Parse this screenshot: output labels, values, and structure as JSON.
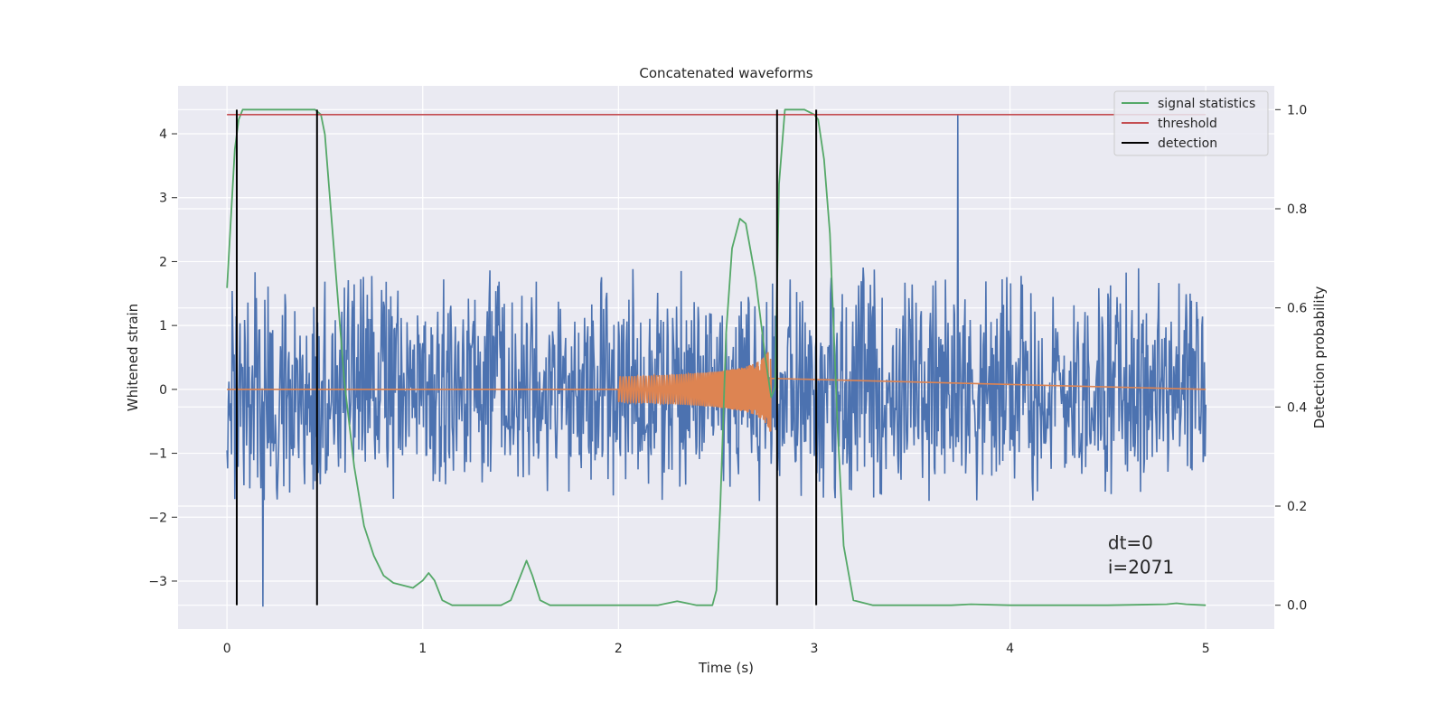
{
  "chart_data": {
    "type": "line",
    "title": "Concatenated waveforms",
    "xlabel": "Time (s)",
    "ylabel": "Whitened strain",
    "y2label": "Detection probability",
    "xlim": [
      -0.25,
      5.35
    ],
    "ylim": [
      -3.75,
      4.75
    ],
    "y2lim": [
      -0.048,
      1.048
    ],
    "x_ticks": [
      0,
      1,
      2,
      3,
      4,
      5
    ],
    "y_ticks": [
      -3,
      -2,
      -1,
      0,
      1,
      2,
      3,
      4
    ],
    "y2_ticks": [
      0.0,
      0.2,
      0.4,
      0.6,
      0.8,
      1.0
    ],
    "grid": true,
    "legend_position": "top-right",
    "colors": {
      "strain": "#4c72b0",
      "injection": "#dd8452",
      "signal_statistics": "#55a868",
      "threshold": "#c44e52",
      "detection": "#000000",
      "background": "#eaeaf2"
    },
    "series": [
      {
        "name": "signal statistics",
        "axis": "right",
        "x": [
          0,
          0.02,
          0.04,
          0.06,
          0.08,
          0.1,
          0.15,
          0.2,
          0.3,
          0.4,
          0.45,
          0.48,
          0.5,
          0.52,
          0.55,
          0.6,
          0.65,
          0.7,
          0.75,
          0.8,
          0.85,
          0.9,
          0.95,
          1.0,
          1.03,
          1.06,
          1.1,
          1.15,
          1.2,
          1.3,
          1.4,
          1.45,
          1.5,
          1.53,
          1.56,
          1.6,
          1.65,
          1.7,
          1.8,
          2.0,
          2.2,
          2.3,
          2.4,
          2.48,
          2.5,
          2.52,
          2.55,
          2.58,
          2.62,
          2.65,
          2.7,
          2.75,
          2.78,
          2.8,
          2.82,
          2.85,
          2.9,
          2.95,
          3.0,
          3.02,
          3.05,
          3.08,
          3.1,
          3.12,
          3.15,
          3.2,
          3.3,
          3.7,
          3.8,
          4.0,
          4.5,
          4.8,
          4.85,
          4.9,
          5.0
        ],
        "values": [
          0.64,
          0.78,
          0.92,
          0.98,
          1.0,
          1.0,
          1.0,
          1.0,
          1.0,
          1.0,
          1.0,
          0.99,
          0.95,
          0.85,
          0.7,
          0.45,
          0.28,
          0.16,
          0.1,
          0.06,
          0.045,
          0.04,
          0.035,
          0.05,
          0.065,
          0.05,
          0.01,
          0.0,
          0.0,
          0.0,
          0.0,
          0.01,
          0.06,
          0.09,
          0.06,
          0.01,
          0.0,
          0.0,
          0.0,
          0.0,
          0.0,
          0.008,
          0.0,
          0.0,
          0.03,
          0.2,
          0.55,
          0.72,
          0.78,
          0.77,
          0.66,
          0.5,
          0.42,
          0.44,
          0.85,
          1.0,
          1.0,
          1.0,
          0.99,
          0.98,
          0.9,
          0.75,
          0.55,
          0.35,
          0.12,
          0.01,
          0.0,
          0.0,
          0.002,
          0.0,
          0.0,
          0.002,
          0.004,
          0.002,
          0.0
        ]
      },
      {
        "name": "threshold",
        "axis": "right",
        "x": [
          0,
          5
        ],
        "values": [
          0.99,
          0.99
        ]
      },
      {
        "name": "detection",
        "axis": "right",
        "x": [
          0.05,
          0.46,
          2.81,
          3.01
        ],
        "values": [
          1.0,
          1.0,
          1.0,
          1.0
        ]
      }
    ],
    "strain_noise": {
      "x_range": [
        0,
        5
      ],
      "typical_envelope": [
        -1.9,
        2.1
      ],
      "extremes": {
        "max": 4.3,
        "min": -3.4
      }
    },
    "injection_chirp": {
      "x_range": [
        2.0,
        2.78
      ],
      "amplitude_start": 0.2,
      "amplitude_peak_positive": 0.65,
      "amplitude_peak_negative": -1.05
    },
    "annotations": [
      "dt=0",
      "i=2071"
    ]
  }
}
